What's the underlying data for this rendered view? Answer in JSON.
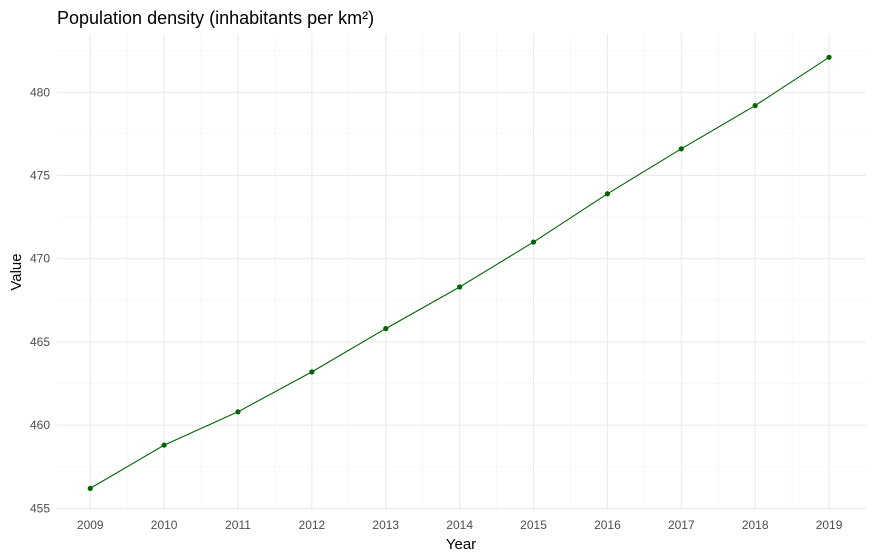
{
  "chart_data": {
    "type": "line",
    "title": "Population density (inhabitants per km²)",
    "xlabel": "Year",
    "ylabel": "Value",
    "x": [
      2009,
      2010,
      2011,
      2012,
      2013,
      2014,
      2015,
      2016,
      2017,
      2018,
      2019
    ],
    "series": [
      {
        "values": [
          456.2,
          458.8,
          460.8,
          463.2,
          465.8,
          468.3,
          471.0,
          473.9,
          476.6,
          479.2,
          482.1
        ]
      }
    ],
    "xlim": [
      2008.55,
      2019.5
    ],
    "ylim": [
      454.9,
      483.5
    ],
    "yticks": [
      455,
      460,
      465,
      470,
      475,
      480
    ],
    "xticks": [
      "2009",
      "2010",
      "2011",
      "2012",
      "2013",
      "2014",
      "2015",
      "2016",
      "2017",
      "2018",
      "2019"
    ],
    "grid": true,
    "line_color": "#006400",
    "point_color": "#006400"
  }
}
